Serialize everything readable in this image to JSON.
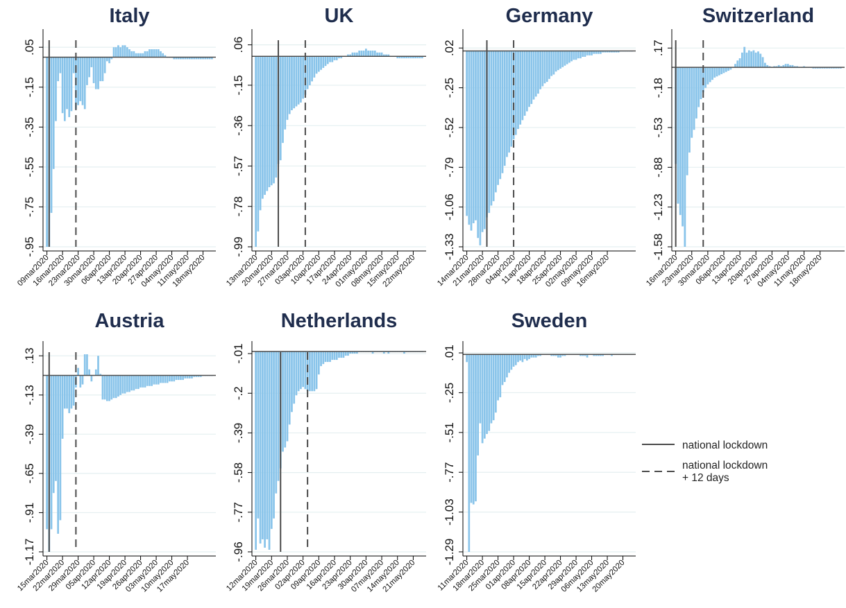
{
  "legend": {
    "solid_label": "national lockdown",
    "dashed_label_line1": "national lockdown",
    "dashed_label_line2": "+ 12 days",
    "placement": "right-middle"
  },
  "colors": {
    "bars": "#89c4ea",
    "lines": "#4a4a4a",
    "title": "#1f2d4d",
    "grid": "#e4eff0"
  },
  "chart_data": [
    {
      "type": "bar",
      "title": "Italy",
      "start_date": "2020-03-09",
      "n_days": 75,
      "ylim": [
        -0.95,
        0.12
      ],
      "yticks": [
        0.05,
        -0.15,
        -0.35,
        -0.55,
        -0.75,
        -0.95
      ],
      "ytick_labels": [
        ".05",
        "-.15",
        "-.35",
        "-.55",
        "-.75",
        "-.95"
      ],
      "xtick_labels": [
        "09mar2020",
        "16mar2020",
        "23mar2020",
        "30mar2020",
        "06apr2020",
        "13apr2020",
        "20apr2020",
        "27apr2020",
        "04may2020",
        "11may2020",
        "18may2020"
      ],
      "hline": 0,
      "lockdown": 1,
      "lockdown12": 13,
      "values": [
        -0.95,
        -0.95,
        -0.78,
        -0.56,
        -0.32,
        -0.12,
        -0.08,
        -0.28,
        -0.32,
        -0.26,
        -0.3,
        -0.27,
        -0.08,
        -0.26,
        -0.24,
        -0.22,
        -0.24,
        -0.26,
        -0.14,
        -0.1,
        -0.05,
        -0.13,
        -0.16,
        -0.16,
        -0.12,
        -0.12,
        -0.08,
        -0.02,
        -0.03,
        -0.01,
        0.05,
        0.05,
        0.06,
        0.05,
        0.06,
        0.06,
        0.05,
        0.04,
        0.03,
        0.03,
        0.02,
        0.02,
        0.02,
        0.02,
        0.03,
        0.03,
        0.04,
        0.04,
        0.04,
        0.04,
        0.04,
        0.03,
        0.02,
        0.01,
        0.0,
        0.0,
        0.0,
        -0.01,
        -0.01,
        -0.01,
        -0.01,
        -0.01,
        -0.01,
        -0.01,
        -0.01,
        -0.01,
        -0.01,
        -0.01,
        -0.01,
        -0.01,
        -0.01,
        -0.01,
        -0.01,
        -0.01,
        -0.01
      ]
    },
    {
      "type": "bar",
      "title": "UK",
      "start_date": "2020-03-13",
      "n_days": 75,
      "ylim": [
        -0.99,
        0.12
      ],
      "yticks": [
        0.06,
        -0.15,
        -0.36,
        -0.57,
        -0.78,
        -0.99
      ],
      "ytick_labels": [
        ".06",
        "-.15",
        "-.36",
        "-.57",
        "-.78",
        "-.99"
      ],
      "xtick_labels": [
        "13mar2020",
        "20mar2020",
        "27mar2020",
        "03apr2020",
        "10apr2020",
        "17apr2020",
        "24apr2020",
        "01may2020",
        "08may2020",
        "15may2020",
        "22may2020"
      ],
      "hline": 0,
      "lockdown": 10,
      "lockdown12": 22,
      "values": [
        -0.99,
        -0.91,
        -0.8,
        -0.74,
        -0.72,
        -0.7,
        -0.68,
        -0.67,
        -0.66,
        -0.63,
        -0.56,
        -0.54,
        -0.45,
        -0.38,
        -0.33,
        -0.3,
        -0.28,
        -0.27,
        -0.26,
        -0.25,
        -0.24,
        -0.22,
        -0.2,
        -0.17,
        -0.15,
        -0.13,
        -0.11,
        -0.09,
        -0.08,
        -0.07,
        -0.06,
        -0.05,
        -0.04,
        -0.03,
        -0.03,
        -0.02,
        -0.02,
        -0.01,
        -0.01,
        0.0,
        0.0,
        0.01,
        0.01,
        0.02,
        0.02,
        0.02,
        0.03,
        0.03,
        0.03,
        0.04,
        0.03,
        0.03,
        0.03,
        0.03,
        0.02,
        0.02,
        0.02,
        0.01,
        0.01,
        0.01,
        0.0,
        0.0,
        0.0,
        -0.01,
        -0.01,
        -0.01,
        -0.01,
        -0.01,
        -0.01,
        -0.01,
        -0.01,
        -0.01,
        -0.01,
        -0.01,
        -0.01
      ]
    },
    {
      "type": "bar",
      "title": "Germany",
      "start_date": "2020-03-14",
      "n_days": 75,
      "ylim": [
        -1.33,
        0.12
      ],
      "yticks": [
        0.02,
        -0.25,
        -0.52,
        -0.79,
        -1.06,
        -1.33
      ],
      "ytick_labels": [
        ".02",
        "-.25",
        "-.52",
        "-.79",
        "-1.06",
        "-1.33"
      ],
      "xtick_labels": [
        "14mar2020",
        "21mar2020",
        "28mar2020",
        "04apr2020",
        "11apr2020",
        "18apr2020",
        "25apr2020",
        "02may2020",
        "09may2020",
        "16may2020"
      ],
      "hline": 0,
      "lockdown": 9,
      "lockdown12": 21,
      "values": [
        -1.12,
        -1.18,
        -1.22,
        -1.17,
        -1.15,
        -1.27,
        -1.32,
        -1.23,
        -1.21,
        -1.13,
        -1.1,
        -1.05,
        -1.02,
        -0.96,
        -0.91,
        -0.87,
        -0.83,
        -0.78,
        -0.72,
        -0.69,
        -0.65,
        -0.6,
        -0.57,
        -0.53,
        -0.5,
        -0.47,
        -0.44,
        -0.41,
        -0.38,
        -0.36,
        -0.33,
        -0.31,
        -0.29,
        -0.26,
        -0.24,
        -0.22,
        -0.21,
        -0.19,
        -0.17,
        -0.16,
        -0.14,
        -0.13,
        -0.12,
        -0.11,
        -0.1,
        -0.09,
        -0.08,
        -0.07,
        -0.06,
        -0.06,
        -0.05,
        -0.05,
        -0.04,
        -0.04,
        -0.03,
        -0.03,
        -0.03,
        -0.02,
        -0.02,
        -0.02,
        -0.02,
        -0.01,
        -0.01,
        -0.01,
        -0.01,
        -0.01,
        -0.01,
        -0.01,
        -0.01,
        0.0,
        0.0,
        0.0,
        0.0,
        0.0,
        0.0
      ]
    },
    {
      "type": "bar",
      "title": "Switzerland",
      "start_date": "2020-03-16",
      "n_days": 73,
      "ylim": [
        -1.58,
        0.3
      ],
      "yticks": [
        0.17,
        -0.18,
        -0.53,
        -0.88,
        -1.23,
        -1.58
      ],
      "ytick_labels": [
        ".17",
        "-.18",
        "-.53",
        "-.88",
        "-1.23",
        "-1.58"
      ],
      "xtick_labels": [
        "16mar2020",
        "23mar2020",
        "30mar2020",
        "06apr2020",
        "13apr2020",
        "20apr2020",
        "27apr2020",
        "04may2020",
        "11may2020",
        "18may2020"
      ],
      "hline": 0,
      "lockdown": 0,
      "lockdown12": 12,
      "values": [
        -0.85,
        -1.2,
        -1.3,
        -1.4,
        -1.58,
        -0.95,
        -0.75,
        -0.62,
        -0.55,
        -0.45,
        -0.35,
        -0.28,
        -0.22,
        -0.18,
        -0.15,
        -0.13,
        -0.11,
        -0.09,
        -0.08,
        -0.07,
        -0.06,
        -0.05,
        -0.04,
        -0.03,
        -0.02,
        0.0,
        0.03,
        0.06,
        0.08,
        0.13,
        0.18,
        0.13,
        0.15,
        0.14,
        0.15,
        0.13,
        0.14,
        0.12,
        0.09,
        0.04,
        0.02,
        0.01,
        0.0,
        0.01,
        0.01,
        0.02,
        0.01,
        0.02,
        0.03,
        0.03,
        0.02,
        0.02,
        0.01,
        0.01,
        0.0,
        0.0,
        0.01,
        0.0,
        0.0,
        0.0,
        -0.01,
        -0.01,
        -0.01,
        -0.01,
        -0.01,
        -0.01,
        -0.01,
        -0.01,
        -0.01,
        -0.01,
        -0.01,
        -0.01,
        -0.01
      ]
    },
    {
      "type": "bar",
      "title": "Austria",
      "start_date": "2020-03-15",
      "n_days": 75,
      "ylim": [
        -1.17,
        0.2
      ],
      "yticks": [
        0.13,
        -0.13,
        -0.39,
        -0.65,
        -0.91,
        -1.17
      ],
      "ytick_labels": [
        ".13",
        "-.13",
        "-.39",
        "-.65",
        "-.91",
        "-1.17"
      ],
      "xtick_labels": [
        "15mar2020",
        "22mar2020",
        "29mar2020",
        "05apr2020",
        "12apr2020",
        "19apr2020",
        "26apr2020",
        "03may2020",
        "10may2020",
        "17may2020"
      ],
      "hline": 0,
      "lockdown": 1,
      "lockdown12": 13,
      "values": [
        -1.02,
        -1.17,
        -1.02,
        -0.78,
        -0.7,
        -1.05,
        -0.96,
        -0.42,
        -0.22,
        -0.22,
        -0.25,
        -0.22,
        -0.2,
        -0.08,
        0.05,
        -0.08,
        -0.06,
        0.14,
        0.14,
        0.04,
        -0.04,
        0.0,
        0.04,
        0.13,
        0.01,
        -0.16,
        -0.16,
        -0.17,
        -0.17,
        -0.16,
        -0.15,
        -0.15,
        -0.14,
        -0.13,
        -0.12,
        -0.12,
        -0.11,
        -0.11,
        -0.1,
        -0.1,
        -0.09,
        -0.09,
        -0.08,
        -0.08,
        -0.08,
        -0.07,
        -0.07,
        -0.07,
        -0.06,
        -0.06,
        -0.06,
        -0.05,
        -0.05,
        -0.05,
        -0.05,
        -0.04,
        -0.04,
        -0.04,
        -0.03,
        -0.03,
        -0.03,
        -0.03,
        -0.02,
        -0.02,
        -0.02,
        -0.02,
        -0.01,
        -0.01,
        -0.01,
        -0.01,
        0.0,
        0.0,
        0.0,
        0.0,
        0.0
      ]
    },
    {
      "type": "bar",
      "title": "Netherlands",
      "start_date": "2020-03-12",
      "n_days": 75,
      "ylim": [
        -0.96,
        0.03
      ],
      "yticks": [
        -0.01,
        -0.2,
        -0.39,
        -0.58,
        -0.77,
        -0.96
      ],
      "ytick_labels": [
        "-.01",
        "-.2",
        "-.39",
        "-.58",
        "-.77",
        "-.96"
      ],
      "xtick_labels": [
        "12mar2020",
        "19mar2020",
        "26mar2020",
        "02apr2020",
        "09apr2020",
        "16apr2020",
        "23apr2020",
        "30apr2020",
        "07may2020",
        "14may2020",
        "21may2020"
      ],
      "hline": 0,
      "lockdown": 11,
      "lockdown12": 23,
      "values": [
        -0.95,
        -0.8,
        -0.92,
        -0.9,
        -0.94,
        -0.9,
        -0.95,
        -0.85,
        -0.8,
        -0.68,
        -0.62,
        -0.56,
        -0.48,
        -0.46,
        -0.43,
        -0.35,
        -0.29,
        -0.25,
        -0.21,
        -0.19,
        -0.18,
        -0.17,
        -0.18,
        -0.19,
        -0.19,
        -0.19,
        -0.19,
        -0.18,
        -0.11,
        -0.07,
        -0.06,
        -0.05,
        -0.05,
        -0.05,
        -0.04,
        -0.04,
        -0.04,
        -0.03,
        -0.03,
        -0.03,
        -0.02,
        -0.02,
        -0.01,
        -0.01,
        -0.01,
        -0.01,
        0.0,
        0.0,
        0.0,
        0.0,
        0.0,
        0.0,
        -0.01,
        0.0,
        0.0,
        0.0,
        0.0,
        -0.01,
        0.0,
        -0.01,
        0.0,
        0.0,
        0.0,
        0.0,
        0.0,
        0.0,
        -0.01,
        0.0,
        0.0,
        0.0,
        0.0,
        0.0,
        0.0,
        0.0,
        0.0
      ]
    },
    {
      "type": "bar",
      "title": "Sweden",
      "start_date": "2020-03-11",
      "n_days": 75,
      "ylim": [
        -1.29,
        0.06
      ],
      "yticks": [
        0.01,
        -0.25,
        -0.51,
        -0.77,
        -1.03,
        -1.29
      ],
      "ytick_labels": [
        ".01",
        "-.25",
        "-.51",
        "-.77",
        "-1.03",
        "-1.29"
      ],
      "xtick_labels": [
        "11mar2020",
        "18mar2020",
        "25mar2020",
        "01apr2020",
        "08apr2020",
        "15apr2020",
        "22apr2020",
        "29apr2020",
        "06may2020",
        "13may2020",
        "20may2020"
      ],
      "hline": 0,
      "values": [
        -0.05,
        -1.29,
        -0.97,
        -0.98,
        -0.96,
        -0.66,
        -0.45,
        -0.58,
        -0.55,
        -0.52,
        -0.5,
        -0.45,
        -0.43,
        -0.38,
        -0.3,
        -0.28,
        -0.2,
        -0.18,
        -0.15,
        -0.12,
        -0.1,
        -0.08,
        -0.07,
        -0.05,
        -0.04,
        -0.05,
        -0.03,
        -0.04,
        -0.03,
        -0.02,
        -0.02,
        -0.02,
        -0.01,
        -0.01,
        0.0,
        0.0,
        0.0,
        0.0,
        -0.01,
        -0.01,
        -0.01,
        -0.02,
        -0.02,
        -0.01,
        -0.01,
        0.0,
        0.0,
        0.0,
        0.0,
        0.0,
        0.0,
        -0.01,
        -0.01,
        -0.01,
        -0.02,
        0.0,
        0.0,
        -0.01,
        -0.01,
        -0.01,
        -0.01,
        -0.01,
        0.0,
        0.0,
        0.0,
        -0.01,
        0.0,
        0.0,
        0.0,
        0.0,
        0.0,
        0.0,
        0.0,
        0.0,
        0.0
      ]
    }
  ]
}
